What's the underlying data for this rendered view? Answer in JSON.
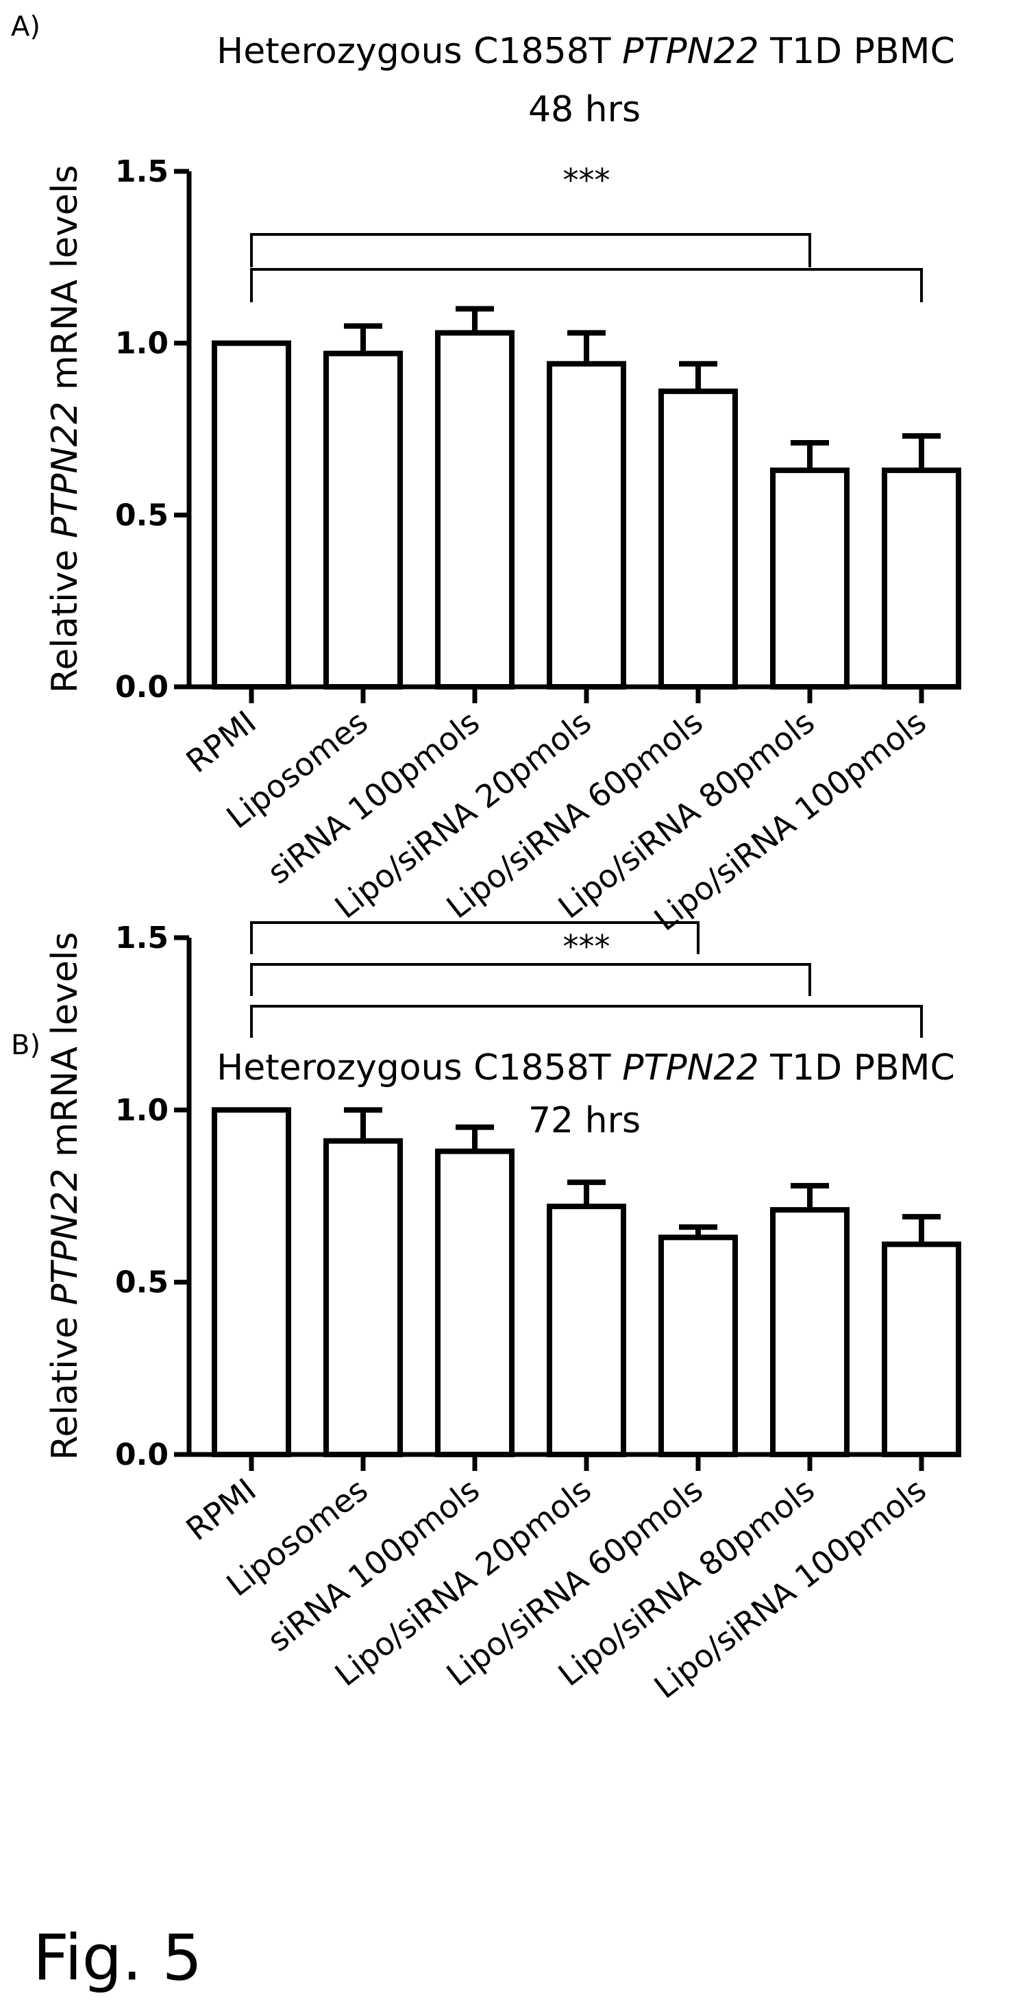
{
  "figure_label": "Fig. 5",
  "chart_data": [
    {
      "panel": "A)",
      "type": "bar",
      "title_prefix": "Heterozygous C1858T ",
      "title_gene": "PTPN22",
      "title_suffix": " T1D PBMC",
      "subtitle": "48 hrs",
      "ylabel_prefix": "Relative ",
      "ylabel_gene": "PTPN22",
      "ylabel_suffix": " mRNA levels",
      "ylim": [
        0,
        1.5
      ],
      "yticks": [
        "0.0",
        "0.5",
        "1.0",
        "1.5"
      ],
      "categories": [
        "RPMI",
        "Liposomes",
        "siRNA 100pmols",
        "Lipo/siRNA 20pmols",
        "Lipo/siRNA 60pmols",
        "Lipo/siRNA 80pmols",
        "Lipo/siRNA 100pmols"
      ],
      "values": [
        1.0,
        0.97,
        1.03,
        0.94,
        0.86,
        0.63,
        0.63
      ],
      "errors": [
        0.0,
        0.08,
        0.07,
        0.09,
        0.08,
        0.08,
        0.1
      ],
      "significance": "***",
      "brackets": [
        {
          "from": "RPMI",
          "to": "Lipo/siRNA 100pmols"
        },
        {
          "from": "RPMI",
          "to": "Lipo/siRNA 80pmols"
        }
      ],
      "grid": false
    },
    {
      "panel": "B)",
      "type": "bar",
      "title_prefix": "Heterozygous C1858T ",
      "title_gene": "PTPN22",
      "title_suffix": " T1D PBMC",
      "subtitle": "72 hrs",
      "ylabel_prefix": "Relative ",
      "ylabel_gene": "PTPN22",
      "ylabel_suffix": " mRNA levels",
      "ylim": [
        0,
        1.5
      ],
      "yticks": [
        "0.0",
        "0.5",
        "1.0",
        "1.5"
      ],
      "categories": [
        "RPMI",
        "Liposomes",
        "siRNA 100pmols",
        "Lipo/siRNA 20pmols",
        "Lipo/siRNA 60pmols",
        "Lipo/siRNA 80pmols",
        "Lipo/siRNA 100pmols"
      ],
      "values": [
        1.0,
        0.91,
        0.88,
        0.72,
        0.63,
        0.71,
        0.61
      ],
      "errors": [
        0.0,
        0.09,
        0.07,
        0.07,
        0.03,
        0.07,
        0.08
      ],
      "significance": "***",
      "brackets": [
        {
          "from": "RPMI",
          "to": "Lipo/siRNA 100pmols"
        },
        {
          "from": "RPMI",
          "to": "Lipo/siRNA 80pmols"
        },
        {
          "from": "RPMI",
          "to": "Lipo/siRNA 60pmols"
        }
      ],
      "grid": false
    }
  ]
}
